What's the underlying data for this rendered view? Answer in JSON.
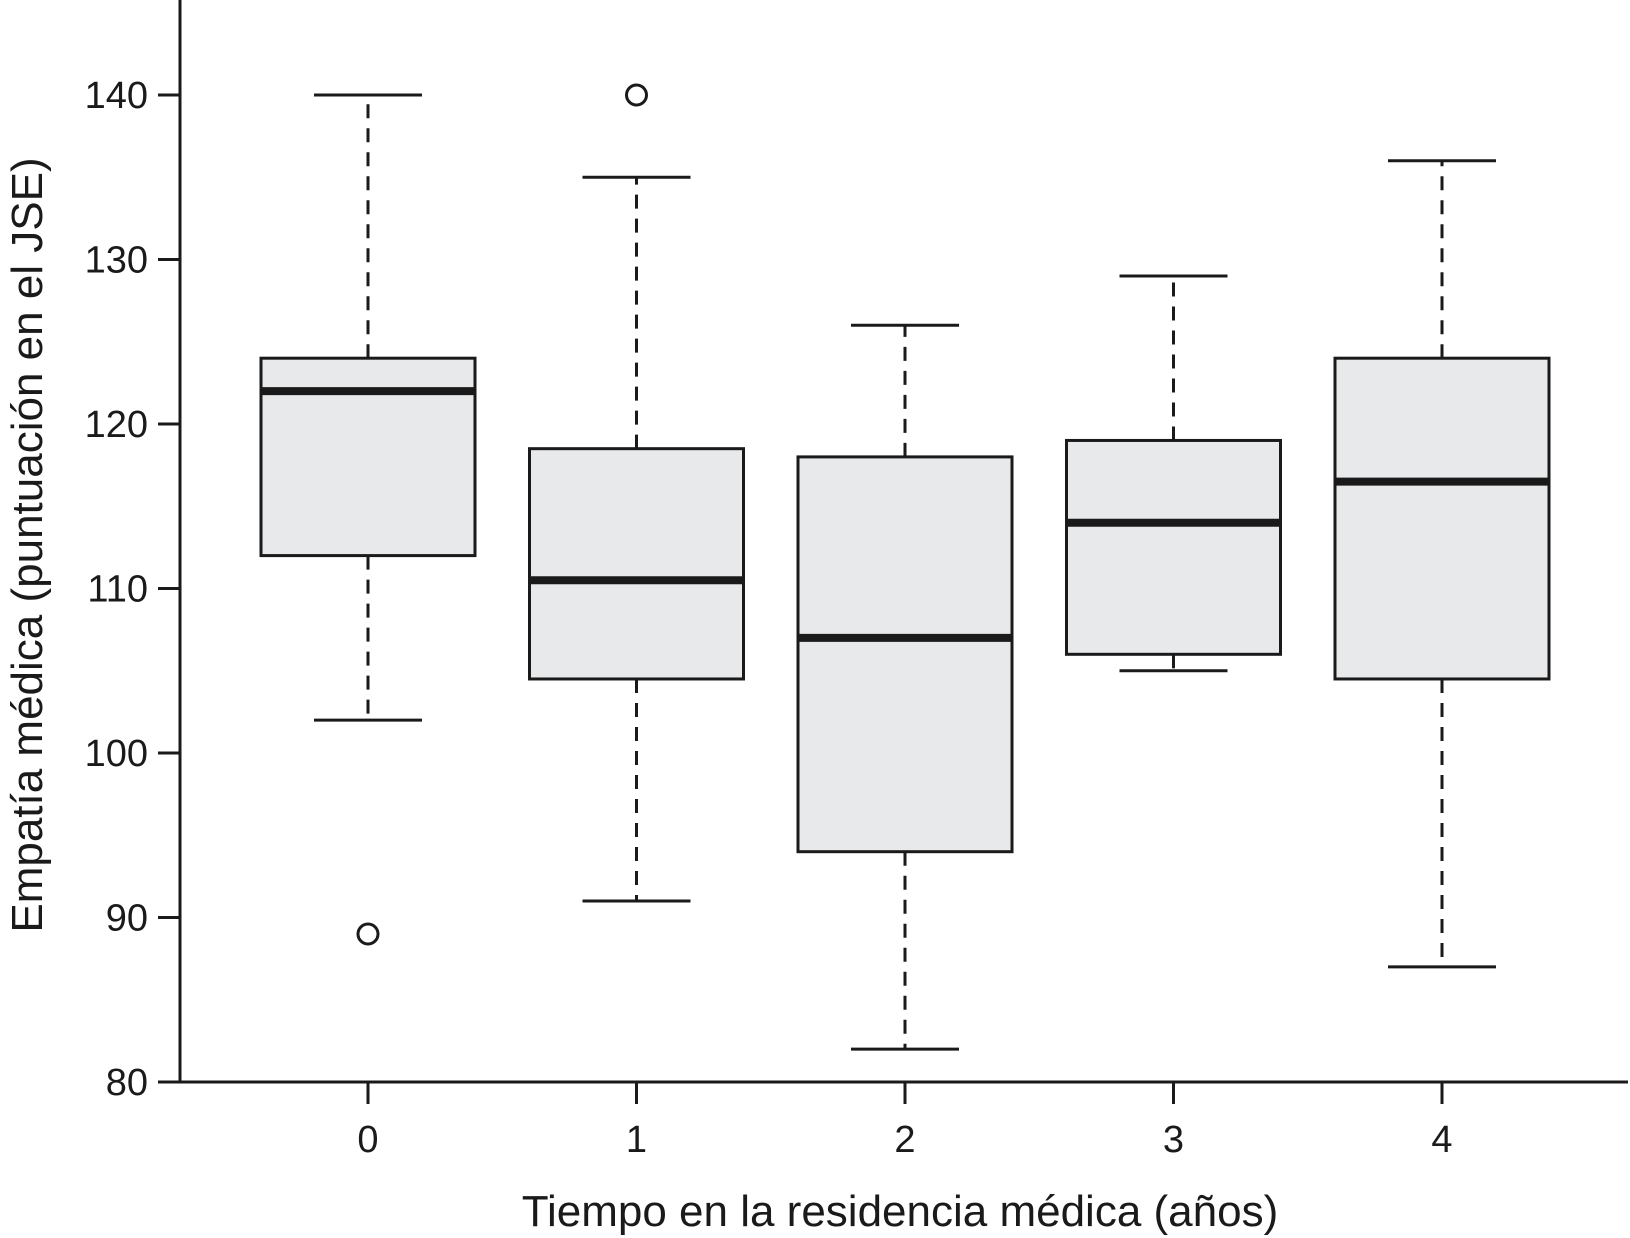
{
  "chart_data": {
    "type": "boxplot",
    "xlabel": "Tiempo en la residencia médica (años)",
    "ylabel": "Empatía médica (puntuación en el JSE)",
    "ylim": [
      80,
      145
    ],
    "yticks": [
      "80",
      "90",
      "100",
      "110",
      "120",
      "130",
      "140"
    ],
    "categories": [
      "0",
      "1",
      "2",
      "3",
      "4"
    ],
    "boxes": [
      {
        "category": "0",
        "whisker_low": 102,
        "q1": 112,
        "median": 122,
        "q3": 124,
        "whisker_high": 140,
        "outliers": [
          89
        ]
      },
      {
        "category": "1",
        "whisker_low": 91,
        "q1": 104.5,
        "median": 110.5,
        "q3": 118.5,
        "whisker_high": 135,
        "outliers": [
          140
        ]
      },
      {
        "category": "2",
        "whisker_low": 82,
        "q1": 94,
        "median": 107,
        "q3": 118,
        "whisker_high": 126,
        "outliers": []
      },
      {
        "category": "3",
        "whisker_low": 105,
        "q1": 106,
        "median": 114,
        "q3": 119,
        "whisker_high": 129,
        "outliers": []
      },
      {
        "category": "4",
        "whisker_low": 87,
        "q1": 104.5,
        "median": 116.5,
        "q3": 124,
        "whisker_high": 136,
        "outliers": []
      }
    ],
    "grid": false,
    "box_fill": "#e8e9eb",
    "line_color": "#1a1a1a"
  }
}
